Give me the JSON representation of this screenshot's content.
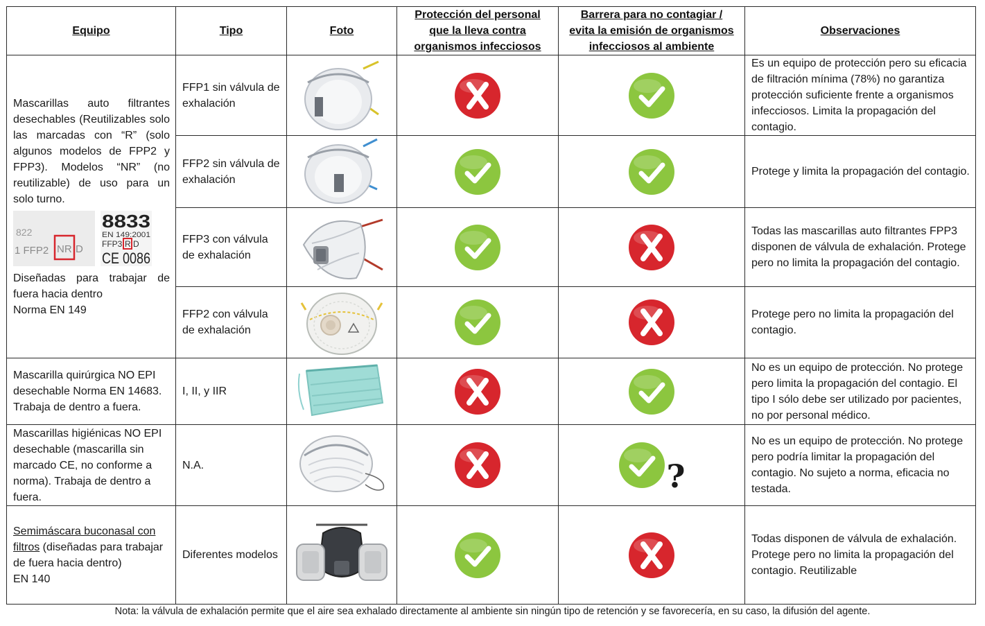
{
  "headers": {
    "equipo": "Equipo",
    "tipo": "Tipo",
    "foto": "Foto",
    "proteccion": [
      "Protección del personal",
      "que la lleva contra",
      "organismos infecciosos"
    ],
    "barrera": [
      "Barrera para no contagiar /",
      "evita la emisión de organismos",
      "infecciosos al ambiente"
    ],
    "observaciones": "Observaciones"
  },
  "group1": {
    "desc": "Mascarillas auto filtrantes desechables (Reutilizables solo las marcadas con “R” (solo algunos modelos de FPP2 y FPP3). Modelos “NR” (no reutilizable) de uso para un solo turno.",
    "label_left": [
      "822",
      "1 FFP2",
      "NR",
      "D"
    ],
    "label_right": [
      "8833",
      "EN 149:2001",
      "FFP3",
      "R",
      "D",
      "CE 0086"
    ],
    "design": "Diseñadas para trabajar de fuera hacia dentro",
    "norma": "Norma EN 149"
  },
  "rows": [
    {
      "tipo": "FFP1 sin válvula de exhalación",
      "proteccion": "cross",
      "barrera": "check",
      "obs": "Es un equipo de protección pero su eficacia de filtración mínima (78%) no garantiza protección suficiente frente a organismos infecciosos. Limita la propagación del contagio.",
      "mask": "cup-yellow"
    },
    {
      "tipo": "FFP2 sin válvula de exhalación",
      "proteccion": "check",
      "barrera": "check",
      "obs": "Protege y limita la propagación del contagio.",
      "mask": "cup-blue"
    },
    {
      "tipo": "FFP3 con válvula de exhalación",
      "proteccion": "check",
      "barrera": "cross",
      "obs": "Todas las mascarillas auto filtrantes FPP3 disponen de válvula de exhalación. Protege pero no limita la propagación del contagio.",
      "mask": "fold-valve"
    },
    {
      "tipo": "FFP2 con válvula de exhalación",
      "proteccion": "check",
      "barrera": "cross",
      "obs": "Protege pero no limita la propagación del contagio.",
      "mask": "cup-valve"
    },
    {
      "equipo": "Mascarilla quirúrgica NO EPI desechable Norma EN 14683. Trabaja de dentro a fuera.",
      "tipo": "I, II, y IIR",
      "proteccion": "cross",
      "barrera": "check",
      "obs": "No es un equipo de protección. No protege pero limita la propagación del contagio. El tipo I sólo debe ser utilizado por pacientes, no por personal médico.",
      "mask": "surgical"
    },
    {
      "equipo": "Mascarillas higiénicas NO EPI desechable (mascarilla sin marcado CE, no conforme a norma). Trabaja de dentro a fuera.",
      "tipo": "N.A.",
      "proteccion": "cross",
      "barrera": "check",
      "barrera_extra": "?",
      "obs": "No es un equipo de protección. No protege pero podría limitar la propagación del contagio. No sujeto a norma, eficacia no testada.",
      "mask": "hygienic"
    },
    {
      "equipo_underlined": "Semimáscara buconasal con filtros",
      "equipo_rest": " (diseñadas para trabajar de fuera hacia dentro)",
      "equipo_norma": "EN 140",
      "tipo": "Diferentes modelos",
      "proteccion": "check",
      "barrera": "cross",
      "obs": "Todas disponen de válvula de exhalación. Protege pero no limita la propagación del contagio. Reutilizable",
      "mask": "respirator"
    }
  ],
  "footnote": "Nota: la válvula de exhalación permite que el aire sea exhalado directamente al ambiente sin ningún tipo de retención y se favorecería, en su caso, la difusión del agente.",
  "colors": {
    "check": "#8cc63f",
    "cross": "#d7262d",
    "border": "#2a2a2a"
  },
  "icons": {
    "check": "check-icon",
    "cross": "cross-icon"
  }
}
